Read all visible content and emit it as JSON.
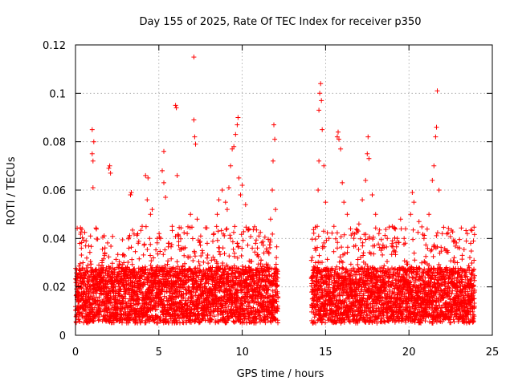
{
  "chart_data": {
    "type": "scatter",
    "title": "Day 155 of 2025, Rate Of TEC Index for receiver p350",
    "xlabel": "GPS time / hours",
    "ylabel": "ROTI / TECUs",
    "xlim": [
      0,
      25
    ],
    "ylim": [
      0,
      0.12
    ],
    "xticks": [
      0,
      5,
      10,
      15,
      20,
      25
    ],
    "yticks": [
      0,
      0.02,
      0.04,
      0.06,
      0.08,
      0.1,
      0.12
    ],
    "xtick_labels": [
      "0",
      "5",
      "10",
      "15",
      "20",
      "25"
    ],
    "ytick_labels": [
      "0",
      "0.02",
      "0.04",
      "0.06",
      "0.08",
      "0.1",
      "0.12"
    ],
    "grid": true,
    "marker": "+",
    "color": "#ff0000",
    "data_gap_hours": [
      12.2,
      14.1
    ],
    "points": [
      [
        0.1,
        0.011
      ],
      [
        0.2,
        0.014
      ],
      [
        0.3,
        0.024
      ],
      [
        0.35,
        0.036
      ],
      [
        0.45,
        0.03
      ],
      [
        0.6,
        0.012
      ],
      [
        0.75,
        0.02
      ],
      [
        0.9,
        0.041
      ],
      [
        1.0,
        0.085
      ],
      [
        1.0,
        0.075
      ],
      [
        1.05,
        0.072
      ],
      [
        1.05,
        0.061
      ],
      [
        1.1,
        0.08
      ],
      [
        1.2,
        0.013
      ],
      [
        1.4,
        0.029
      ],
      [
        1.6,
        0.031
      ],
      [
        1.75,
        0.033
      ],
      [
        1.9,
        0.021
      ],
      [
        2.0,
        0.069
      ],
      [
        2.05,
        0.07
      ],
      [
        2.1,
        0.067
      ],
      [
        2.3,
        0.015
      ],
      [
        2.6,
        0.028
      ],
      [
        2.9,
        0.03
      ],
      [
        3.0,
        0.017
      ],
      [
        3.2,
        0.036
      ],
      [
        3.3,
        0.058
      ],
      [
        3.35,
        0.059
      ],
      [
        3.5,
        0.024
      ],
      [
        3.7,
        0.022
      ],
      [
        4.0,
        0.045
      ],
      [
        4.2,
        0.066
      ],
      [
        4.3,
        0.056
      ],
      [
        4.35,
        0.065
      ],
      [
        4.5,
        0.05
      ],
      [
        4.6,
        0.052
      ],
      [
        4.8,
        0.02
      ],
      [
        5.1,
        0.04
      ],
      [
        5.2,
        0.068
      ],
      [
        5.3,
        0.076
      ],
      [
        5.3,
        0.063
      ],
      [
        5.4,
        0.057
      ],
      [
        5.6,
        0.038
      ],
      [
        5.8,
        0.045
      ],
      [
        6.0,
        0.095
      ],
      [
        6.05,
        0.094
      ],
      [
        6.1,
        0.066
      ],
      [
        6.4,
        0.036
      ],
      [
        6.7,
        0.042
      ],
      [
        6.9,
        0.05
      ],
      [
        7.1,
        0.115
      ],
      [
        7.1,
        0.089
      ],
      [
        7.15,
        0.082
      ],
      [
        7.2,
        0.079
      ],
      [
        7.3,
        0.048
      ],
      [
        7.6,
        0.035
      ],
      [
        7.9,
        0.038
      ],
      [
        8.1,
        0.027
      ],
      [
        8.3,
        0.042
      ],
      [
        8.5,
        0.05
      ],
      [
        8.6,
        0.056
      ],
      [
        8.8,
        0.06
      ],
      [
        9.0,
        0.055
      ],
      [
        9.1,
        0.052
      ],
      [
        9.2,
        0.061
      ],
      [
        9.3,
        0.07
      ],
      [
        9.4,
        0.077
      ],
      [
        9.5,
        0.078
      ],
      [
        9.6,
        0.083
      ],
      [
        9.7,
        0.087
      ],
      [
        9.75,
        0.09
      ],
      [
        9.8,
        0.065
      ],
      [
        9.9,
        0.058
      ],
      [
        10.0,
        0.062
      ],
      [
        10.2,
        0.054
      ],
      [
        10.4,
        0.044
      ],
      [
        10.6,
        0.036
      ],
      [
        10.8,
        0.038
      ],
      [
        11.0,
        0.041
      ],
      [
        11.3,
        0.034
      ],
      [
        11.5,
        0.028
      ],
      [
        11.7,
        0.048
      ],
      [
        11.8,
        0.06
      ],
      [
        11.85,
        0.072
      ],
      [
        11.9,
        0.087
      ],
      [
        11.95,
        0.081
      ],
      [
        12.0,
        0.052
      ],
      [
        12.1,
        0.018
      ],
      [
        14.2,
        0.015
      ],
      [
        14.3,
        0.022
      ],
      [
        14.4,
        0.03
      ],
      [
        14.5,
        0.045
      ],
      [
        14.55,
        0.06
      ],
      [
        14.6,
        0.072
      ],
      [
        14.6,
        0.093
      ],
      [
        14.65,
        0.1
      ],
      [
        14.7,
        0.104
      ],
      [
        14.75,
        0.097
      ],
      [
        14.8,
        0.085
      ],
      [
        14.9,
        0.07
      ],
      [
        15.0,
        0.055
      ],
      [
        15.2,
        0.04
      ],
      [
        15.5,
        0.045
      ],
      [
        15.7,
        0.082
      ],
      [
        15.75,
        0.084
      ],
      [
        15.8,
        0.081
      ],
      [
        15.9,
        0.077
      ],
      [
        16.0,
        0.063
      ],
      [
        16.1,
        0.055
      ],
      [
        16.3,
        0.05
      ],
      [
        16.5,
        0.044
      ],
      [
        16.8,
        0.037
      ],
      [
        17.0,
        0.046
      ],
      [
        17.2,
        0.056
      ],
      [
        17.4,
        0.064
      ],
      [
        17.5,
        0.075
      ],
      [
        17.55,
        0.082
      ],
      [
        17.6,
        0.073
      ],
      [
        17.8,
        0.058
      ],
      [
        18.0,
        0.05
      ],
      [
        18.2,
        0.042
      ],
      [
        18.4,
        0.036
      ],
      [
        18.7,
        0.04
      ],
      [
        19.0,
        0.045
      ],
      [
        19.3,
        0.04
      ],
      [
        19.5,
        0.048
      ],
      [
        19.8,
        0.044
      ],
      [
        20.1,
        0.05
      ],
      [
        20.2,
        0.059
      ],
      [
        20.3,
        0.055
      ],
      [
        20.6,
        0.047
      ],
      [
        20.9,
        0.04
      ],
      [
        21.2,
        0.05
      ],
      [
        21.4,
        0.064
      ],
      [
        21.5,
        0.07
      ],
      [
        21.6,
        0.082
      ],
      [
        21.65,
        0.086
      ],
      [
        21.7,
        0.101
      ],
      [
        21.8,
        0.06
      ],
      [
        22.0,
        0.042
      ],
      [
        22.3,
        0.035
      ],
      [
        22.6,
        0.022
      ],
      [
        22.9,
        0.03
      ],
      [
        23.2,
        0.033
      ],
      [
        23.5,
        0.042
      ],
      [
        23.7,
        0.038
      ],
      [
        23.9,
        0.031
      ]
    ],
    "band": {
      "segments": [
        [
          0.0,
          12.15
        ],
        [
          14.15,
          23.95
        ]
      ],
      "base_low": 0.005,
      "base_high": 0.028,
      "spread_high": 0.045
    }
  }
}
